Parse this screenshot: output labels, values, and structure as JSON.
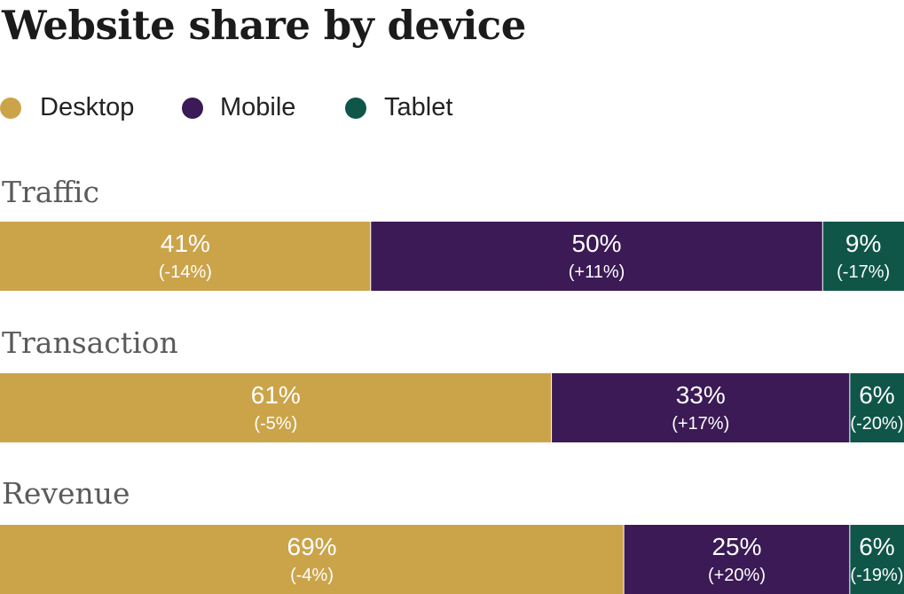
{
  "title": "Website share by device",
  "colors": {
    "desktop": "#cba44a",
    "mobile": "#3b1a55",
    "tablet": "#0f5649"
  },
  "legend": [
    {
      "label": "Desktop",
      "color": "#cba44a"
    },
    {
      "label": "Mobile",
      "color": "#3b1a55"
    },
    {
      "label": "Tablet",
      "color": "#0f5649"
    }
  ],
  "chart_data": {
    "type": "bar",
    "orientation": "horizontal",
    "stacked": true,
    "normalized": true,
    "title": "Website share by device",
    "categories": [
      "Traffic",
      "Transaction",
      "Revenue"
    ],
    "legend_position": "top-left",
    "grid": false,
    "xlim": [
      0,
      100
    ],
    "series": [
      {
        "name": "Desktop",
        "color": "#cba44a",
        "values": [
          41,
          61,
          69
        ],
        "labels": [
          "41%",
          "61%",
          "69%"
        ],
        "changes": [
          "(-14%)",
          "(-5%)",
          "(-4%)"
        ]
      },
      {
        "name": "Mobile",
        "color": "#3b1a55",
        "values": [
          50,
          33,
          25
        ],
        "labels": [
          "50%",
          "33%",
          "25%"
        ],
        "changes": [
          "(+11%)",
          "(+17%)",
          "(+20%)"
        ]
      },
      {
        "name": "Tablet",
        "color": "#0f5649",
        "values": [
          9,
          6,
          6
        ],
        "labels": [
          "9%",
          "6%",
          "6%"
        ],
        "changes": [
          "(-17%)",
          "(-20%)",
          "(-19%)"
        ]
      }
    ]
  }
}
